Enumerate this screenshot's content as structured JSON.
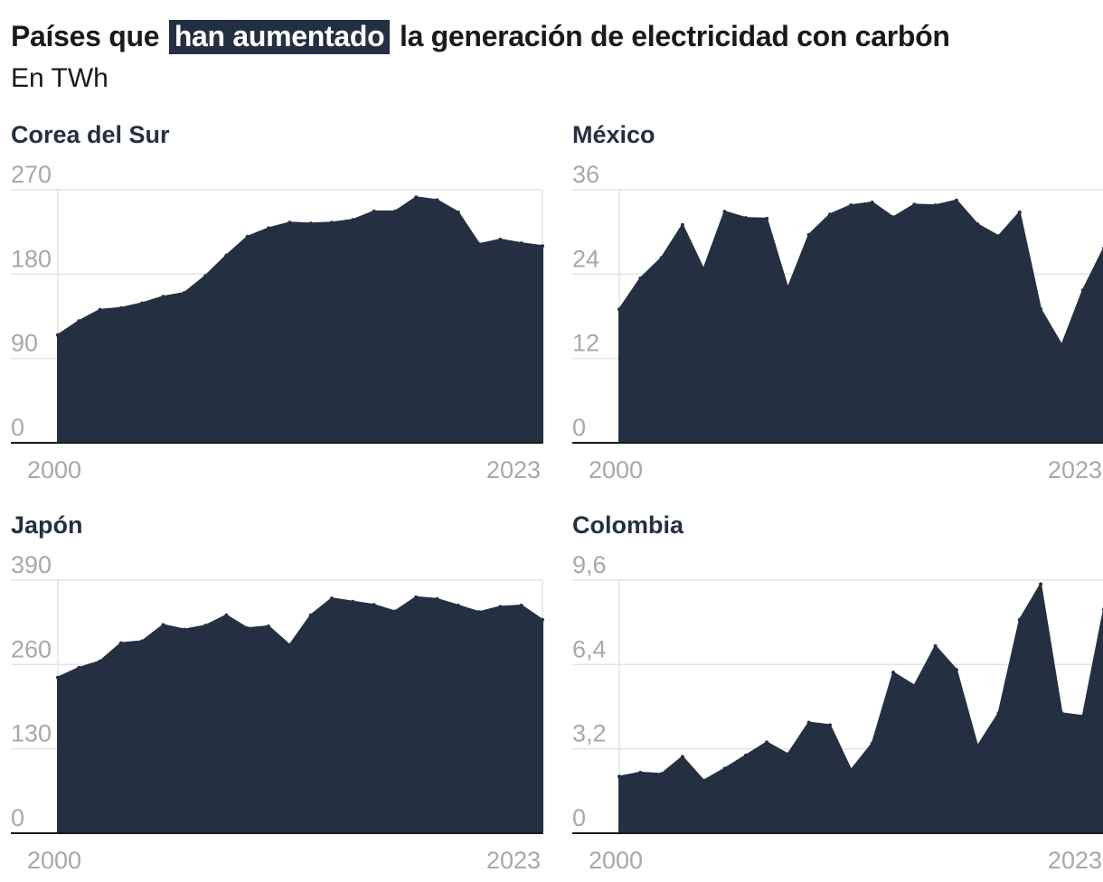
{
  "header": {
    "title_before": "Países que",
    "title_highlight": "han aumentado",
    "title_after": "la generación de electricidad con carbón",
    "subtitle": "En TWh"
  },
  "colors": {
    "area": "#243041",
    "grid": "#e3e3e3",
    "tick": "#a8a8a8"
  },
  "chart_data": [
    {
      "type": "area",
      "title": "Corea del Sur",
      "x_labels": [
        "2000",
        "2023"
      ],
      "x": [
        2000,
        2001,
        2002,
        2003,
        2004,
        2005,
        2006,
        2007,
        2008,
        2009,
        2010,
        2011,
        2012,
        2013,
        2014,
        2015,
        2016,
        2017,
        2018,
        2019,
        2020,
        2021,
        2022,
        2023
      ],
      "y_ticks": [
        "0",
        "90",
        "180",
        "270"
      ],
      "ylim": [
        0,
        270
      ],
      "values": [
        115,
        130,
        142,
        144,
        149,
        156,
        160,
        178,
        200,
        220,
        229,
        235,
        234,
        235,
        238,
        247,
        247,
        262,
        259,
        246,
        212,
        217,
        213,
        210
      ],
      "grid": true
    },
    {
      "type": "area",
      "title": "México",
      "x_labels": [
        "2000",
        "2023"
      ],
      "x": [
        2000,
        2001,
        2002,
        2003,
        2004,
        2005,
        2006,
        2007,
        2008,
        2009,
        2010,
        2011,
        2012,
        2013,
        2014,
        2015,
        2016,
        2017,
        2018,
        2019,
        2020,
        2021,
        2022,
        2023
      ],
      "y_ticks": [
        "0",
        "12",
        "24",
        "36"
      ],
      "ylim": [
        0,
        36
      ],
      "values": [
        19,
        23.4,
        26.3,
        31,
        24.7,
        32.9,
        32,
        31.9,
        22,
        29.6,
        32.5,
        33.8,
        34.2,
        32.1,
        33.9,
        33.8,
        34.5,
        31.1,
        29.4,
        32.8,
        19,
        13.9,
        21.7,
        27.7
      ],
      "grid": true
    },
    {
      "type": "area",
      "title": "Japón",
      "x_labels": [
        "2000",
        "2023"
      ],
      "x": [
        2000,
        2001,
        2002,
        2003,
        2004,
        2005,
        2006,
        2007,
        2008,
        2009,
        2010,
        2011,
        2012,
        2013,
        2014,
        2015,
        2016,
        2017,
        2018,
        2019,
        2020,
        2021,
        2022,
        2023
      ],
      "y_ticks": [
        "0",
        "130",
        "260",
        "390"
      ],
      "ylim": [
        0,
        390
      ],
      "values": [
        240,
        255,
        265,
        293,
        296,
        321,
        314,
        320,
        336,
        316,
        319,
        290,
        336,
        362,
        357,
        352,
        342,
        364,
        361,
        351,
        341,
        349,
        351,
        329
      ],
      "grid": true
    },
    {
      "type": "area",
      "title": "Colombia",
      "x_labels": [
        "2000",
        "2023"
      ],
      "x": [
        2000,
        2001,
        2002,
        2003,
        2004,
        2005,
        2006,
        2007,
        2008,
        2009,
        2010,
        2011,
        2012,
        2013,
        2014,
        2015,
        2016,
        2017,
        2018,
        2019,
        2020,
        2021,
        2022,
        2023
      ],
      "y_ticks": [
        "0",
        "3,2",
        "6,4",
        "9,6"
      ],
      "ylim": [
        0,
        9.6
      ],
      "values": [
        2.15,
        2.3,
        2.25,
        2.9,
        2.0,
        2.45,
        2.95,
        3.45,
        3.0,
        4.2,
        4.1,
        2.4,
        3.4,
        6.1,
        5.6,
        7.1,
        6.2,
        3.3,
        4.55,
        8.1,
        9.45,
        4.55,
        4.45,
        8.5
      ],
      "grid": true
    }
  ]
}
